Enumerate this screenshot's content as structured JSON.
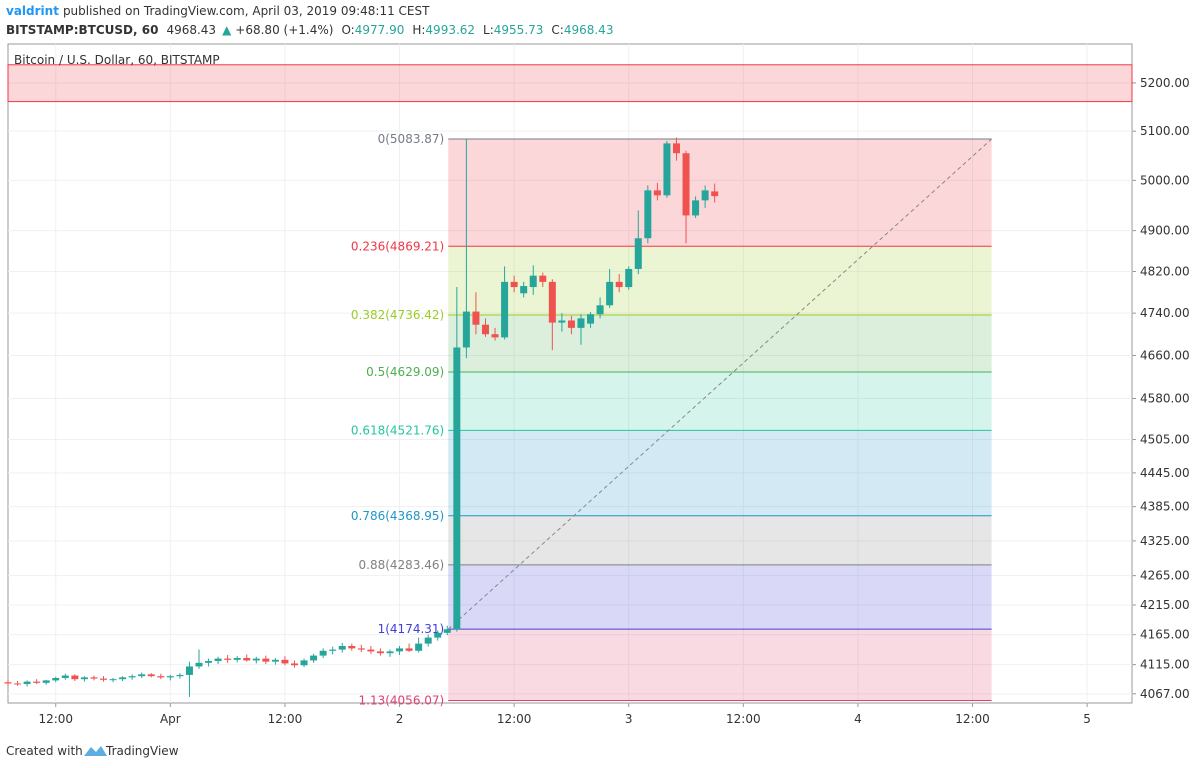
{
  "header": {
    "user": "valdrint",
    "published": "published on TradingView.com, April 03, 2019 09:48:11 CEST",
    "symbol": "BITSTAMP:BTCUSD, 60",
    "last": "4968.43",
    "change": "+68.80 (+1.4%)",
    "ohlc": [
      {
        "label": "O:",
        "value": "4977.90"
      },
      {
        "label": "H:",
        "value": "4993.62"
      },
      {
        "label": "L:",
        "value": "4955.73"
      },
      {
        "label": "C:",
        "value": "4968.43"
      }
    ]
  },
  "footer": {
    "created": "Created with",
    "brand": "TradingView"
  },
  "chart_data": {
    "type": "candlestick",
    "title": "Bitcoin / U.S. Dollar, 60, BITSTAMP",
    "log_scale": true,
    "grid": true,
    "up_color": "#26a69a",
    "down_color": "#ef5350",
    "x": [
      -17,
      -16,
      -15,
      -14,
      -13,
      -12,
      -11,
      -10,
      -9,
      -8,
      -7,
      -6,
      -5,
      -4,
      -3,
      -2,
      -1,
      0,
      1,
      2,
      3,
      4,
      5,
      6,
      7,
      8,
      9,
      10,
      11,
      12,
      13,
      14,
      15,
      16,
      17,
      18,
      19,
      20,
      21,
      22,
      23,
      24,
      25,
      26,
      27,
      28,
      29,
      30,
      31,
      32,
      33,
      34,
      35,
      36,
      37,
      38,
      39,
      40,
      41,
      42,
      43,
      44,
      45,
      46,
      47,
      48,
      49,
      50,
      51,
      52,
      53,
      54,
      55,
      56,
      57
    ],
    "open": [
      4086,
      4084,
      4083,
      4087,
      4085,
      4089,
      4093,
      4097,
      4091,
      4094,
      4092,
      4090,
      4091,
      4094,
      4096,
      4099,
      4096,
      4094,
      4096,
      4098,
      4112,
      4118,
      4121,
      4125,
      4123,
      4126,
      4122,
      4125,
      4120,
      4123,
      4117,
      4114,
      4122,
      4130,
      4138,
      4140,
      4146,
      4142,
      4140,
      4137,
      4134,
      4137,
      4142,
      4138,
      4150,
      4160,
      4168,
      4174,
      4675,
      4743,
      4718,
      4700,
      4694,
      4800,
      4778,
      4790,
      4812,
      4800,
      4722,
      4726,
      4712,
      4720,
      4738,
      4755,
      4800,
      4790,
      4825,
      4885,
      4980,
      4970,
      5075,
      5055,
      4930,
      4960,
      4977.9
    ],
    "high": [
      4090,
      4088,
      4089,
      4091,
      4090,
      4095,
      4100,
      4099,
      4096,
      4097,
      4096,
      4093,
      4096,
      4099,
      4102,
      4101,
      4100,
      4098,
      4101,
      4120,
      4140,
      4125,
      4128,
      4131,
      4129,
      4132,
      4128,
      4130,
      4126,
      4129,
      4122,
      4125,
      4133,
      4142,
      4145,
      4151,
      4150,
      4148,
      4146,
      4142,
      4140,
      4146,
      4150,
      4160,
      4165,
      4172,
      4180,
      4790,
      5083.87,
      4780,
      4730,
      4712,
      4830,
      4812,
      4800,
      4832,
      4818,
      4805,
      4740,
      4735,
      4738,
      4742,
      4770,
      4825,
      4815,
      4830,
      4940,
      4990,
      4995,
      5080,
      5087,
      5060,
      4968,
      4990,
      4993.62
    ],
    "low": [
      4081,
      4080,
      4079,
      4083,
      4082,
      4086,
      4090,
      4088,
      4087,
      4089,
      4087,
      4086,
      4088,
      4090,
      4093,
      4094,
      4091,
      4089,
      4092,
      4062,
      4108,
      4112,
      4116,
      4118,
      4119,
      4120,
      4117,
      4116,
      4115,
      4114,
      4110,
      4111,
      4118,
      4126,
      4132,
      4135,
      4138,
      4136,
      4133,
      4130,
      4128,
      4131,
      4136,
      4135,
      4145,
      4155,
      4164,
      4170,
      4655,
      4700,
      4695,
      4688,
      4690,
      4780,
      4770,
      4775,
      4790,
      4670,
      4705,
      4700,
      4680,
      4712,
      4730,
      4750,
      4780,
      4785,
      4815,
      4875,
      4960,
      4965,
      5040,
      4875,
      4925,
      4945,
      4955.73
    ],
    "close": [
      4084,
      4083,
      4087,
      4085,
      4089,
      4093,
      4097,
      4091,
      4094,
      4092,
      4090,
      4091,
      4094,
      4096,
      4099,
      4096,
      4094,
      4096,
      4098,
      4112,
      4118,
      4121,
      4125,
      4123,
      4126,
      4122,
      4125,
      4120,
      4123,
      4117,
      4114,
      4122,
      4130,
      4138,
      4140,
      4146,
      4142,
      4140,
      4137,
      4134,
      4137,
      4142,
      4138,
      4150,
      4160,
      4168,
      4174,
      4675,
      4743,
      4718,
      4700,
      4694,
      4800,
      4790,
      4792,
      4812,
      4800,
      4722,
      4726,
      4712,
      4730,
      4738,
      4755,
      4800,
      4790,
      4825,
      4885,
      4980,
      4970,
      5075,
      5055,
      4930,
      4960,
      4980,
      4968.43
    ],
    "xlim": [
      -17.0,
      100.7
    ],
    "xticks": [
      {
        "value": -12,
        "label": "12:00"
      },
      {
        "value": 0,
        "label": "Apr"
      },
      {
        "value": 12,
        "label": "12:00"
      },
      {
        "value": 24,
        "label": "2"
      },
      {
        "value": 36,
        "label": "12:00"
      },
      {
        "value": 48,
        "label": "3"
      },
      {
        "value": 60,
        "label": "12:00"
      },
      {
        "value": 72,
        "label": "4"
      },
      {
        "value": 84,
        "label": "12:00"
      },
      {
        "value": 96,
        "label": "5"
      }
    ],
    "ylim": [
      4052,
      5282
    ],
    "yticks": [
      {
        "value": 5200,
        "label": "5200.00"
      },
      {
        "value": 5100,
        "label": "5100.00"
      },
      {
        "value": 5000,
        "label": "5000.00"
      },
      {
        "value": 4900,
        "label": "4900.00"
      },
      {
        "value": 4820,
        "label": "4820.00"
      },
      {
        "value": 4740,
        "label": "4740.00"
      },
      {
        "value": 4660,
        "label": "4660.00"
      },
      {
        "value": 4580,
        "label": "4580.00"
      },
      {
        "value": 4505,
        "label": "4505.00"
      },
      {
        "value": 4445,
        "label": "4445.00"
      },
      {
        "value": 4385,
        "label": "4385.00"
      },
      {
        "value": 4325,
        "label": "4325.00"
      },
      {
        "value": 4265,
        "label": "4265.00"
      },
      {
        "value": 4215,
        "label": "4215.00"
      },
      {
        "value": 4165,
        "label": "4165.00"
      },
      {
        "value": 4115,
        "label": "4115.00"
      },
      {
        "value": 4067,
        "label": "4067.00"
      }
    ],
    "zone": {
      "range": [
        5161,
        5238
      ],
      "color": "#f23645"
    },
    "fib": {
      "x_range": [
        29.1,
        86
      ],
      "levels": [
        {
          "value": 5083.87,
          "label": "0(5083.87)",
          "color": "#787b86"
        },
        {
          "value": 4869.21,
          "label": "0.236(4869.21)",
          "color": "#f23645"
        },
        {
          "value": 4736.42,
          "label": "0.382(4736.42)",
          "color": "#9ccc29"
        },
        {
          "value": 4629.09,
          "label": "0.5(4629.09)",
          "color": "#4caf50"
        },
        {
          "value": 4521.76,
          "label": "0.618(4521.76)",
          "color": "#26c6a0"
        },
        {
          "value": 4368.95,
          "label": "0.786(4368.95)",
          "color": "#2196c8"
        },
        {
          "value": 4283.46,
          "label": "0.88(4283.46)",
          "color": "#808080"
        },
        {
          "value": 4174.31,
          "label": "1(4174.31)",
          "color": "#4040d8"
        },
        {
          "value": 4056.07,
          "label": "1.13(4056.07)",
          "color": "#e04070"
        }
      ]
    }
  }
}
